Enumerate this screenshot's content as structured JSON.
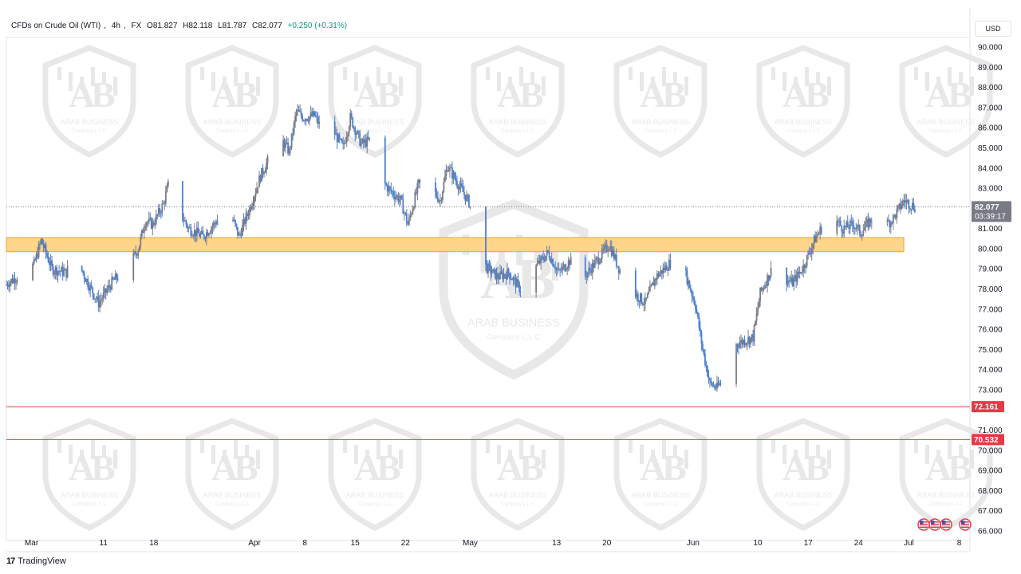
{
  "header": {
    "symbol": "CFDs on Crude Oil (WTI)",
    "interval": "4h",
    "exchange": "FX",
    "open": "O81.827",
    "high": "H82.118",
    "low": "L81.787",
    "close": "C82.077",
    "change": "+0.250 (+0.31%)"
  },
  "currency": "USD",
  "brand": {
    "logo": "17",
    "name": "TradingView"
  },
  "watermark": {
    "title": "ARAB BUSINESS",
    "subtitle": "Company L.L.C"
  },
  "price_tag": {
    "value": "82.077",
    "countdown": "03:39:17",
    "color": "#787b86"
  },
  "colors": {
    "up": "#787b86",
    "down": "#4a7fd1",
    "zone_fill": "#ffd58a",
    "zone_border": "#e8a33a",
    "support_line": "#e63946"
  },
  "chart_data": {
    "type": "candlestick",
    "ylim": [
      66,
      90
    ],
    "y_ticks": [
      "90.000",
      "89.000",
      "88.000",
      "87.000",
      "86.000",
      "85.000",
      "84.000",
      "83.000",
      "82.000",
      "81.000",
      "80.000",
      "79.000",
      "78.000",
      "77.000",
      "76.000",
      "75.000",
      "74.000",
      "73.000",
      "71.000",
      "70.000",
      "69.000",
      "68.000",
      "67.000",
      "66.000"
    ],
    "x_labels": [
      {
        "label": "Mar",
        "day": 0
      },
      {
        "label": "11",
        "day": 10
      },
      {
        "label": "18",
        "day": 17
      },
      {
        "label": "Apr",
        "day": 31
      },
      {
        "label": "8",
        "day": 38
      },
      {
        "label": "15",
        "day": 45
      },
      {
        "label": "22",
        "day": 52
      },
      {
        "label": "May",
        "day": 61
      },
      {
        "label": "13",
        "day": 73
      },
      {
        "label": "20",
        "day": 80
      },
      {
        "label": "Jun",
        "day": 92
      },
      {
        "label": "10",
        "day": 101
      },
      {
        "label": "17",
        "day": 108
      },
      {
        "label": "24",
        "day": 115
      },
      {
        "label": "Jul",
        "day": 122
      },
      {
        "label": "8",
        "day": 129
      }
    ],
    "xlim": [
      -3.5,
      130.5
    ],
    "price_path": [
      [
        -3.5,
        78.2
      ],
      [
        0.5,
        79.2
      ],
      [
        1.5,
        80.4
      ],
      [
        3,
        79.0
      ],
      [
        5,
        78.8
      ],
      [
        6,
        79.8
      ],
      [
        8,
        78.3
      ],
      [
        9.5,
        77.3
      ],
      [
        11.5,
        78.4
      ],
      [
        13.5,
        79.0
      ],
      [
        15,
        80.0
      ],
      [
        16,
        81.4
      ],
      [
        17,
        81.2
      ],
      [
        18.5,
        82.2
      ],
      [
        19.5,
        83.6
      ],
      [
        20.5,
        82.0
      ],
      [
        22,
        81.0
      ],
      [
        24,
        80.6
      ],
      [
        26,
        81.4
      ],
      [
        27.5,
        82.1
      ],
      [
        29,
        80.6
      ],
      [
        30.5,
        82.0
      ],
      [
        32,
        83.6
      ],
      [
        33.5,
        84.7
      ],
      [
        35,
        85.4
      ],
      [
        36,
        84.8
      ],
      [
        37,
        86.8
      ],
      [
        38,
        86.5
      ],
      [
        39.5,
        86.6
      ],
      [
        41,
        85.6
      ],
      [
        42,
        85.9
      ],
      [
        43.5,
        85.0
      ],
      [
        44.5,
        86.5
      ],
      [
        46,
        85.2
      ],
      [
        47.5,
        85.4
      ],
      [
        49,
        83.3
      ],
      [
        50,
        82.9
      ],
      [
        51.5,
        82.4
      ],
      [
        52.5,
        81.2
      ],
      [
        54,
        83.2
      ],
      [
        55.5,
        83.1
      ],
      [
        57,
        82.4
      ],
      [
        58,
        84.1
      ],
      [
        59.5,
        83.2
      ],
      [
        61,
        82.3
      ],
      [
        62,
        81.0
      ],
      [
        63,
        79.2
      ],
      [
        65,
        78.6
      ],
      [
        66.5,
        78.8
      ],
      [
        68.5,
        77.8
      ],
      [
        70.5,
        79.2
      ],
      [
        72,
        79.8
      ],
      [
        73.5,
        78.8
      ],
      [
        75,
        79.4
      ],
      [
        77,
        78.6
      ],
      [
        79,
        79.5
      ],
      [
        80.5,
        80.2
      ],
      [
        82,
        78.9
      ],
      [
        84,
        77.8
      ],
      [
        85.5,
        77.3
      ],
      [
        87,
        78.6
      ],
      [
        89,
        79.3
      ],
      [
        90,
        80.3
      ],
      [
        91,
        78.9
      ],
      [
        92.5,
        77.2
      ],
      [
        93.5,
        75.0
      ],
      [
        94.5,
        73.3
      ],
      [
        95.5,
        73.1
      ],
      [
        97,
        73.8
      ],
      [
        98,
        75.2
      ],
      [
        99,
        75.4
      ],
      [
        100.5,
        75.6
      ],
      [
        101.5,
        77.8
      ],
      [
        103,
        78.9
      ],
      [
        104.5,
        78.6
      ],
      [
        106,
        78.3
      ],
      [
        107.5,
        79.1
      ],
      [
        109,
        80.4
      ],
      [
        110,
        81.0
      ],
      [
        111.5,
        81.7
      ],
      [
        113,
        81.0
      ],
      [
        114.5,
        81.2
      ],
      [
        115.5,
        80.8
      ],
      [
        117,
        81.5
      ],
      [
        118.5,
        81.0
      ],
      [
        120,
        81.5
      ],
      [
        121.5,
        82.4
      ],
      [
        123,
        82.077
      ]
    ],
    "resistance_zone": [
      79.85,
      80.55
    ],
    "support_lines": [
      {
        "value": 72.161,
        "label": "72.161"
      },
      {
        "value": 70.532,
        "label": "70.532"
      }
    ],
    "current_price": 82.077
  }
}
